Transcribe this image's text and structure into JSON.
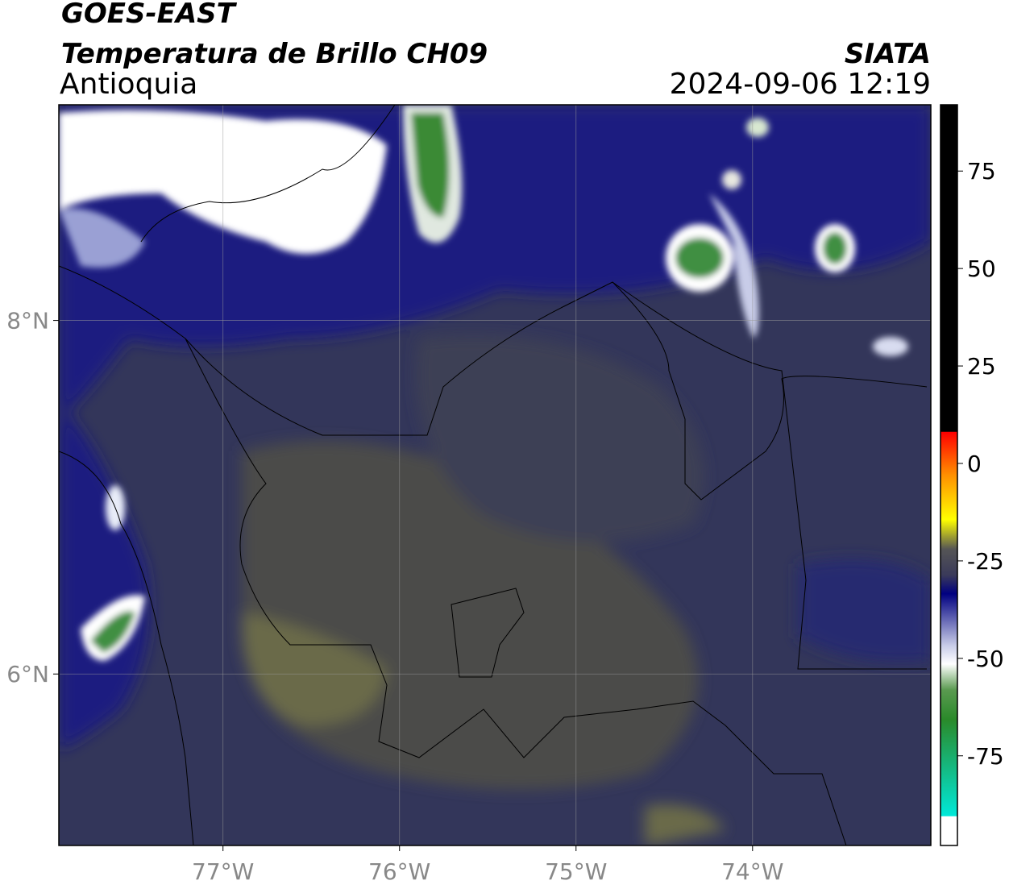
{
  "header": {
    "title": "GOES-EAST",
    "subtitle": "Temperatura de Brillo CH09",
    "region": "Antioquia",
    "source": "SIATA",
    "datetime": "2024-09-06 12:19"
  },
  "map": {
    "xlim": [
      -77.93,
      -72.99
    ],
    "ylim": [
      5.03,
      9.22
    ],
    "xticks": [
      {
        "value": -77,
        "label": "77°W"
      },
      {
        "value": -76,
        "label": "76°W"
      },
      {
        "value": -75,
        "label": "75°W"
      },
      {
        "value": -74,
        "label": "74°W"
      }
    ],
    "yticks": [
      {
        "value": 8,
        "label": "8°N"
      },
      {
        "value": 6,
        "label": "6°N"
      }
    ],
    "grid": true
  },
  "colorbar": {
    "lim": [
      -98,
      92
    ],
    "ticks": [
      75,
      50,
      25,
      0,
      -25,
      -50,
      -75
    ]
  }
}
